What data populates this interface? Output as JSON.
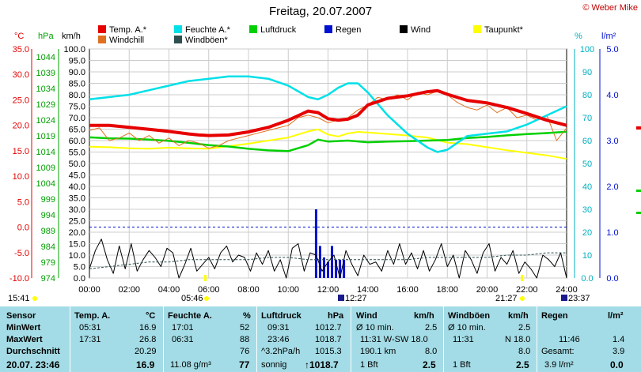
{
  "title": "Freitag, 20.07.2007",
  "credit": "© Weber Mike",
  "legend": [
    {
      "label": "Temp. A.*",
      "color": "#e60000"
    },
    {
      "label": "Feuchte A.*",
      "color": "#00e0e8"
    },
    {
      "label": "Luftdruck",
      "color": "#00d000"
    },
    {
      "label": "Regen",
      "color": "#0010d0"
    },
    {
      "label": "Wind",
      "color": "#000000"
    },
    {
      "label": "Taupunkt*",
      "color": "#ffff00"
    },
    {
      "label": "Windchill",
      "color": "#e07020"
    },
    {
      "label": "Windböen*",
      "color": "#2f4f4f"
    }
  ],
  "units": {
    "temp": "°C",
    "pressure": "hPa",
    "wind": "km/h",
    "humidity": "%",
    "rain": "l/m²"
  },
  "chart_data": {
    "type": "line",
    "title": "Freitag, 20.07.2007",
    "x_ticks": [
      "00:00",
      "02:00",
      "04:00",
      "06:00",
      "08:00",
      "10:00",
      "12:00",
      "14:00",
      "16:00",
      "18:00",
      "20:00",
      "22:00",
      "24:00"
    ],
    "temp_ticks": [
      "35.0",
      "30.0",
      "25.0",
      "20.0",
      "15.0",
      "10.0",
      "5.0",
      "0.0",
      "-5.0",
      "-10.0"
    ],
    "pressure_ticks": [
      "1044",
      "1039",
      "1034",
      "1029",
      "1024",
      "1019",
      "1014",
      "1009",
      "1004",
      "999",
      "994",
      "989",
      "984",
      "979",
      "974"
    ],
    "wind_ticks": [
      "100.0",
      "95.0",
      "90.0",
      "85.0",
      "80.0",
      "75.0",
      "70.0",
      "65.0",
      "60.0",
      "55.0",
      "50.0",
      "45.0",
      "40.0",
      "35.0",
      "30.0",
      "25.0",
      "20.0",
      "15.0",
      "10.0",
      "5.0",
      "0.0"
    ],
    "humidity_ticks": [
      "100",
      "90",
      "80",
      "70",
      "60",
      "50",
      "40",
      "30",
      "20",
      "10",
      "0.0"
    ],
    "rain_ticks": [
      "5.0",
      "4.0",
      "3.0",
      "2.0",
      "1.0",
      "0.0"
    ],
    "ylim_temp": [
      -10,
      35
    ],
    "series": [
      {
        "name": "Temp. A.*",
        "color": "#e60000",
        "x": [
          0,
          1,
          2,
          3,
          4,
          5,
          5.5,
          6,
          7,
          8,
          9,
          10,
          11,
          11.5,
          12,
          12.5,
          13,
          13.5,
          14,
          15,
          16,
          17,
          17.5,
          18,
          19,
          20,
          21,
          22,
          23,
          24
        ],
        "y": [
          20.0,
          20.0,
          19.6,
          19.2,
          18.8,
          18.3,
          18.1,
          18.0,
          18.1,
          18.7,
          19.6,
          21.0,
          22.8,
          22.5,
          21.3,
          21.0,
          21.2,
          22.0,
          24.0,
          25.3,
          25.8,
          26.6,
          26.8,
          26.1,
          24.9,
          24.4,
          23.5,
          22.3,
          21.0,
          20.0
        ]
      },
      {
        "name": "Windchill",
        "color": "#e07020",
        "x": [
          0,
          0.5,
          1,
          1.5,
          2,
          2.5,
          3,
          3.5,
          4,
          4.5,
          5,
          5.5,
          6,
          6.5,
          7,
          7.5,
          8,
          8.5,
          9,
          9.5,
          10,
          10.5,
          11,
          11.5,
          12,
          12.5,
          13,
          13.5,
          14,
          14.5,
          15,
          15.5,
          16,
          16.5,
          17,
          17.5,
          18,
          18.5,
          19,
          19.5,
          20,
          20.5,
          21,
          21.5,
          22,
          22.5,
          23,
          23.5,
          24
        ],
        "y": [
          19.0,
          19.5,
          17.0,
          17.5,
          18.5,
          17.0,
          18.0,
          16.5,
          17.5,
          16.0,
          17.0,
          16.5,
          15.5,
          16.0,
          17.0,
          17.5,
          18.0,
          18.5,
          19.0,
          19.5,
          20.0,
          21.5,
          22.0,
          21.5,
          20.5,
          21.0,
          21.5,
          23.0,
          24.0,
          25.5,
          25.0,
          26.0,
          25.0,
          26.5,
          26.0,
          26.7,
          26.0,
          24.5,
          23.5,
          23.0,
          24.0,
          22.5,
          23.5,
          21.5,
          22.0,
          21.0,
          22.0,
          17.0,
          19.5
        ]
      },
      {
        "name": "Feuchte A.*",
        "color": "#00e0e8",
        "x": [
          0,
          1,
          2,
          3,
          4,
          5,
          6,
          7,
          8,
          9,
          10,
          11,
          11.5,
          12,
          12.5,
          13,
          13.5,
          14,
          15,
          16,
          17,
          17.5,
          18,
          19,
          20,
          21,
          22,
          23,
          24
        ],
        "y": [
          78,
          79,
          80,
          82,
          84,
          86,
          87,
          88,
          88,
          87,
          84,
          79,
          78,
          80,
          83,
          85,
          85,
          81,
          71,
          63,
          57,
          55,
          56,
          62,
          63,
          64,
          67,
          71,
          75
        ]
      },
      {
        "name": "Luftdruck",
        "color": "#00d000",
        "x": [
          0,
          1,
          2,
          3,
          4,
          5,
          6,
          7,
          8,
          9,
          10,
          11,
          11.5,
          12,
          13,
          14,
          15,
          16,
          17,
          18,
          19,
          20,
          21,
          22,
          23,
          24
        ],
        "y": [
          1017.0,
          1016.7,
          1016.6,
          1016.3,
          1015.9,
          1015.3,
          1014.6,
          1014.2,
          1013.5,
          1013.0,
          1012.8,
          1014.6,
          1016.3,
          1015.7,
          1016.0,
          1015.5,
          1015.7,
          1015.8,
          1016.0,
          1016.2,
          1016.8,
          1017.1,
          1017.6,
          1018.0,
          1018.3,
          1018.7
        ]
      },
      {
        "name": "Taupunkt*",
        "color": "#ffff00",
        "x": [
          0,
          1,
          2,
          3,
          4,
          5,
          6,
          7,
          8,
          9,
          10,
          11,
          11.5,
          12,
          12.5,
          13,
          13.5,
          14,
          15,
          16,
          17,
          18,
          19,
          20,
          21,
          22,
          23,
          24
        ],
        "y": [
          15.8,
          15.7,
          15.5,
          15.4,
          15.6,
          15.5,
          15.4,
          15.9,
          16.4,
          17.0,
          17.6,
          18.8,
          19.2,
          18.2,
          17.8,
          18.4,
          18.7,
          18.6,
          18.3,
          18.0,
          17.6,
          16.6,
          16.3,
          15.7,
          15.1,
          14.6,
          14.1,
          13.4
        ]
      },
      {
        "name": "Wind",
        "color": "#000000",
        "x": [
          0,
          0.3,
          0.6,
          0.9,
          1.2,
          1.5,
          1.8,
          2.1,
          2.4,
          2.7,
          3.0,
          3.3,
          3.6,
          3.9,
          4.2,
          4.5,
          4.8,
          5.1,
          5.4,
          5.7,
          6.0,
          6.3,
          6.6,
          6.9,
          7.2,
          7.5,
          7.8,
          8.1,
          8.4,
          8.7,
          9.0,
          9.3,
          9.6,
          9.9,
          10.2,
          10.5,
          10.8,
          11.1,
          11.4,
          11.7,
          12.0,
          12.3,
          12.6,
          12.9,
          13.2,
          13.5,
          13.8,
          14.1,
          14.4,
          14.7,
          15.0,
          15.3,
          15.6,
          15.9,
          16.2,
          16.5,
          16.8,
          17.1,
          17.4,
          17.7,
          18.0,
          18.3,
          18.6,
          18.9,
          19.2,
          19.5,
          19.8,
          20.1,
          20.4,
          20.7,
          21.0,
          21.3,
          21.6,
          21.9,
          22.2,
          22.5,
          22.8,
          23.1,
          23.4,
          23.7,
          24.0
        ],
        "y": [
          4,
          12,
          17,
          8,
          2,
          14,
          4,
          15,
          3,
          8,
          12,
          9,
          5,
          13,
          11,
          0,
          6,
          13,
          3,
          6,
          9,
          4,
          11,
          14,
          7,
          10,
          9,
          3,
          11,
          6,
          12,
          3,
          8,
          0,
          13,
          15,
          3,
          11,
          10,
          3,
          7,
          10,
          0,
          12,
          6,
          1,
          10,
          6,
          7,
          3,
          12,
          6,
          15,
          6,
          11,
          4,
          12,
          3,
          8,
          15,
          5,
          10,
          0,
          12,
          8,
          2,
          11,
          15,
          3,
          9,
          6,
          12,
          2,
          7,
          4,
          0,
          10,
          8,
          5,
          11,
          0
        ]
      },
      {
        "name": "Windböen*",
        "color": "#2f4f4f",
        "x": [
          0,
          1,
          2,
          3,
          4,
          5,
          6,
          7,
          8,
          9,
          10,
          11,
          12,
          13,
          14,
          15,
          16,
          17,
          18,
          19,
          20,
          21,
          22,
          23,
          24
        ],
        "y": [
          4,
          5,
          6,
          7,
          7,
          8,
          8,
          8,
          8,
          9,
          9,
          8,
          8,
          8,
          8,
          8,
          8,
          9,
          9,
          9,
          9,
          10,
          10,
          11,
          11
        ]
      },
      {
        "name": "Regen",
        "color": "#0010d0",
        "x": [
          11.4,
          11.6,
          11.8,
          12.0,
          12.2,
          12.4,
          12.6,
          12.8
        ],
        "y": [
          1.5,
          0.7,
          0.45,
          0.35,
          0.7,
          0.4,
          0.4,
          0.4
        ]
      }
    ],
    "markers": {
      "sunrise": "05:46",
      "sunset": "21:27",
      "moonrise": "12:27",
      "moonset": "23:37",
      "dawn": "15:41"
    }
  },
  "table": {
    "headers": [
      "Sensor",
      "Temp. A.",
      "°C",
      "Feuchte A.",
      "%",
      "Luftdruck",
      "hPa",
      "Wind",
      "km/h",
      "Windböen",
      "km/h",
      "Regen",
      "l/m²"
    ],
    "rows": {
      "min": {
        "label": "MinWert",
        "temp_time": "05:31",
        "temp": "16.9",
        "hum_time": "17:01",
        "hum": "52",
        "p_time": "09:31",
        "p": "1012.7",
        "w_lbl": "Ø 10 min.",
        "w": "2.5",
        "g_lbl": "Ø 10 min.",
        "g": "2.5",
        "r_lbl": "",
        "r": ""
      },
      "max": {
        "label": "MaxWert",
        "temp_time": "17:31",
        "temp": "26.8",
        "hum_time": "06:31",
        "hum": "88",
        "p_time": "23:46",
        "p": "1018.7",
        "w_lbl": "11:31    W-SW 18.0",
        "w": "",
        "g_lbl": "11:31",
        "g": "N 18.0",
        "r_lbl": "11:46",
        "r": "1.4"
      },
      "avg": {
        "label": "Durchschnitt",
        "temp": "20.29",
        "hum": "76",
        "p_lbl": "^3.2hPa/h",
        "p": "1015.3",
        "w_lbl": "190.1 km",
        "w": "8.0",
        "g": "8.0",
        "r_lbl": "Gesamt:",
        "r": "3.9"
      },
      "now": {
        "label": "20.07. 23:46",
        "temp": "16.9",
        "hum_lbl": "11.08 g/m³",
        "hum": "77",
        "p_lbl": "sonnig",
        "p": "↑1018.7",
        "w_lbl": "1 Bft",
        "w": "2.5",
        "g_lbl": "1 Bft",
        "g": "2.5",
        "r_lbl": "3.9 l/m²",
        "r": "0.0"
      }
    }
  }
}
